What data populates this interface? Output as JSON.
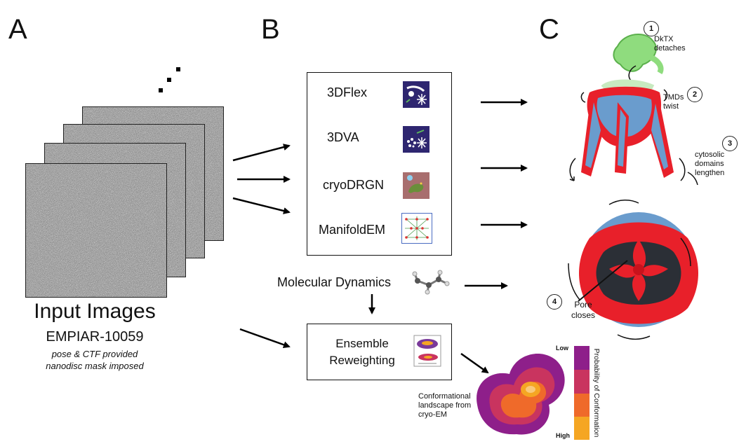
{
  "panels": {
    "a": "A",
    "b": "B",
    "c": "C"
  },
  "panel_a": {
    "title": "Input Images",
    "dataset": "EMPIAR-10059",
    "note1": "pose & CTF provided",
    "note2": "nanodisc mask imposed"
  },
  "methods": [
    {
      "label": "3DFlex",
      "icon": "3dflex-icon"
    },
    {
      "label": "3DVA",
      "icon": "3dva-icon"
    },
    {
      "label": "cryoDRGN",
      "icon": "cryodrgn-icon"
    },
    {
      "label": "ManifoldEM",
      "icon": "manifoldem-icon"
    }
  ],
  "md_label": "Molecular Dynamics",
  "ensemble": {
    "line1": "Ensemble",
    "line2": "Reweighting"
  },
  "landscape": {
    "caption1": "Conformational",
    "caption2": "landscape from",
    "caption3": "cryo-EM",
    "colorbar_low": "Low",
    "colorbar_high": "High",
    "colorbar_title": "Probability of Conformation",
    "colors": [
      "#8e1f8a",
      "#c9345f",
      "#ef6a2a",
      "#f5a623"
    ]
  },
  "annotations": [
    {
      "num": "1",
      "text1": "DkTX",
      "text2": "detaches"
    },
    {
      "num": "2",
      "text1": "TMDs",
      "text2": "twist"
    },
    {
      "num": "3",
      "text1": "cytosolic",
      "text2": "domains",
      "text3": "lengthen"
    },
    {
      "num": "4",
      "text1": "Pore",
      "text2": "closes"
    }
  ],
  "colors": {
    "red": "#e8202a",
    "blue": "#6a9ccd",
    "green": "#8fdc7e",
    "dark": "#2b2f36"
  }
}
